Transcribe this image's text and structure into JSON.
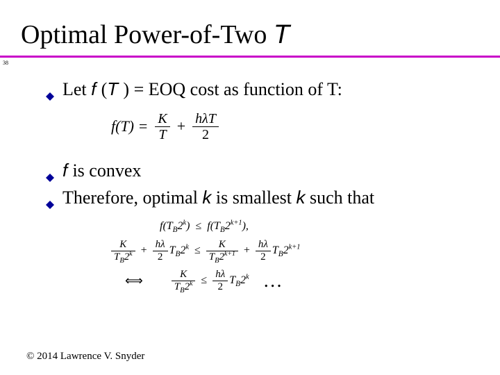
{
  "page_marker": "38",
  "title": {
    "prefix": "Optimal Power-of-Two ",
    "var": "T"
  },
  "underline": {
    "color": "#c800c8",
    "thickness": 3
  },
  "bullet_color": "#000099",
  "bullets": {
    "b1_prefix": "Let ",
    "b1_func": "f ",
    "b1_arg_open": "(",
    "b1_arg": "T ",
    "b1_arg_close": ")",
    "b1_rest": " = EOQ cost as function of T:",
    "b2_func": "f ",
    "b2_rest": " is convex",
    "b3_prefix": "Therefore, optimal ",
    "b3_k1": "k",
    "b3_mid": " is smallest ",
    "b3_k2": "k",
    "b3_rest": " such that"
  },
  "eq1": {
    "lhs": "f(T) =",
    "num1": "K",
    "den1": "T",
    "plus": "+",
    "num2": "hλT",
    "den2": "2"
  },
  "ineq1": {
    "left_open": "f(T",
    "left_sub": "B",
    "left_pow_base": "2",
    "left_pow_exp": "k",
    "left_close": ")",
    "le": "≤",
    "right_open": "f(T",
    "right_sub": "B",
    "right_pow_base": "2",
    "right_pow_exp": "k+1",
    "right_close": "),"
  },
  "ineq2": {
    "num1": "K",
    "den1_a": "T",
    "den1_sub": "B",
    "den1_pow": "2",
    "den1_exp": "k",
    "plus1": "+",
    "num2_a": "hλ",
    "num2_den": "2",
    "num2_b": "T",
    "num2_sub": "B",
    "num2_pow": "2",
    "num2_exp": "k",
    "le": "≤",
    "num3": "K",
    "den3_a": "T",
    "den3_sub": "B",
    "den3_pow": "2",
    "den3_exp": "k+1",
    "plus2": "+",
    "num4_a": "hλ",
    "num4_den": "2",
    "num4_b": "T",
    "num4_sub": "B",
    "num4_pow": "2",
    "num4_exp": "k+1"
  },
  "ineq3": {
    "iff": "⟺",
    "num1": "K",
    "den1_a": "T",
    "den1_sub": "B",
    "den1_pow": "2",
    "den1_exp": "k",
    "le": "≤",
    "num2_a": "hλ",
    "num2_den": "2",
    "num2_b": "T",
    "num2_sub": "B",
    "num2_pow": "2",
    "num2_exp": "k",
    "dots": "…"
  },
  "footer": "© 2014 Lawrence V. Snyder"
}
